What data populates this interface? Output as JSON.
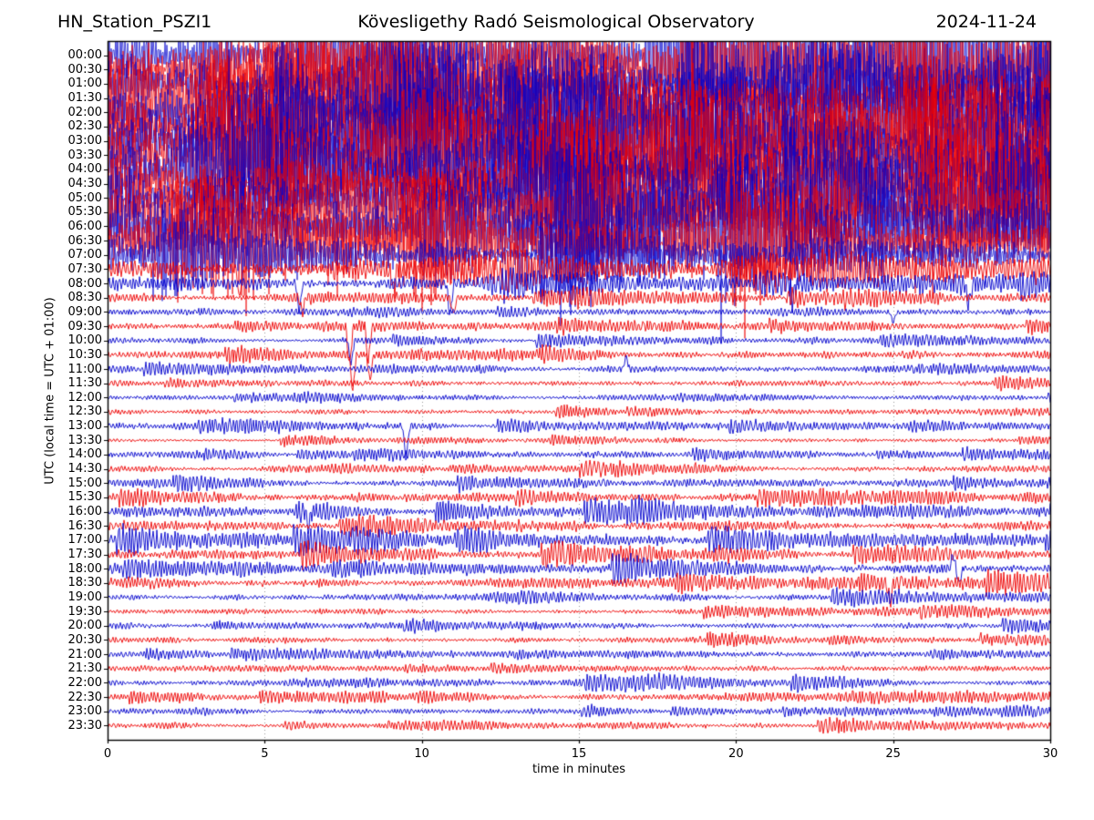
{
  "header": {
    "station": "HN_Station_PSZI1",
    "observatory": "Kövesligethy Radó Seismological Observatory",
    "date": "2024-11-24"
  },
  "chart_data": {
    "type": "line",
    "subtype": "helicorder-drum-plot",
    "x_label": "time in minutes",
    "y_label": "UTC (local time = UTC + 01:00)",
    "x_range": [
      0,
      30
    ],
    "x_ticks": [
      0,
      5,
      10,
      15,
      20,
      25,
      30
    ],
    "grid_minutes": [
      5,
      10,
      15,
      20,
      25
    ],
    "grid_style": "dotted",
    "minutes_per_row": 30,
    "colors": {
      "blue_trace": "#0000cd",
      "red_trace": "#ee0000",
      "grid": "#999999",
      "axis": "#000000",
      "background": "#ffffff"
    },
    "rows": [
      {
        "label": "00:00",
        "color": "blue",
        "amp": 62,
        "act": 0.9
      },
      {
        "label": "00:30",
        "color": "red",
        "amp": 62,
        "act": 0.9
      },
      {
        "label": "01:00",
        "color": "blue",
        "amp": 62,
        "act": 0.9
      },
      {
        "label": "01:30",
        "color": "red",
        "amp": 62,
        "act": 0.9
      },
      {
        "label": "02:00",
        "color": "blue",
        "amp": 62,
        "act": 0.9
      },
      {
        "label": "02:30",
        "color": "red",
        "amp": 62,
        "act": 0.9
      },
      {
        "label": "03:00",
        "color": "blue",
        "amp": 61,
        "act": 0.9
      },
      {
        "label": "03:30",
        "color": "red",
        "amp": 60,
        "act": 0.9
      },
      {
        "label": "04:00",
        "color": "blue",
        "amp": 60,
        "act": 0.9
      },
      {
        "label": "04:30",
        "color": "red",
        "amp": 58,
        "act": 0.9
      },
      {
        "label": "05:00",
        "color": "blue",
        "amp": 55,
        "act": 0.9
      },
      {
        "label": "05:30",
        "color": "red",
        "amp": 52,
        "act": 0.9
      },
      {
        "label": "06:00",
        "color": "blue",
        "amp": 48,
        "act": 0.9
      },
      {
        "label": "06:30",
        "color": "red",
        "amp": 40,
        "act": 0.85
      },
      {
        "label": "07:00",
        "color": "blue",
        "amp": 30,
        "act": 0.8
      },
      {
        "label": "07:30",
        "color": "red",
        "amp": 20,
        "act": 0.75,
        "spikes": [
          [
            4.2,
            -34
          ],
          [
            9.1,
            -28
          ]
        ]
      },
      {
        "label": "08:00",
        "color": "blue",
        "amp": 11,
        "act": 0.7,
        "spikes": [
          [
            6.1,
            -32
          ],
          [
            10.9,
            -38
          ],
          [
            21.8,
            -20
          ],
          [
            27.4,
            -26
          ]
        ]
      },
      {
        "label": "08:30",
        "color": "red",
        "amp": 7,
        "act": 0.6,
        "spikes": [
          [
            6.2,
            -18
          ],
          [
            11.0,
            -20
          ]
        ]
      },
      {
        "label": "09:00",
        "color": "blue",
        "amp": 5,
        "act": 0.5,
        "spikes": [
          [
            25.0,
            -12
          ]
        ]
      },
      {
        "label": "09:30",
        "color": "red",
        "amp": 6,
        "act": 0.5,
        "spikes": [
          [
            7.7,
            -48
          ],
          [
            8.3,
            -40
          ]
        ]
      },
      {
        "label": "10:00",
        "color": "blue",
        "amp": 5,
        "act": 0.5,
        "spikes": [
          [
            7.75,
            -26
          ]
        ]
      },
      {
        "label": "10:30",
        "color": "red",
        "amp": 6,
        "act": 0.5,
        "spikes": [
          [
            7.8,
            -42
          ],
          [
            8.35,
            -30
          ]
        ]
      },
      {
        "label": "11:00",
        "color": "blue",
        "amp": 6,
        "act": 0.55,
        "spikes": [
          [
            16.5,
            14
          ]
        ]
      },
      {
        "label": "11:30",
        "color": "red",
        "amp": 5,
        "act": 0.5
      },
      {
        "label": "12:00",
        "color": "blue",
        "amp": 4,
        "act": 0.45
      },
      {
        "label": "12:30",
        "color": "red",
        "amp": 5,
        "act": 0.5
      },
      {
        "label": "13:00",
        "color": "blue",
        "amp": 6,
        "act": 0.5,
        "spikes": [
          [
            9.5,
            -40
          ]
        ]
      },
      {
        "label": "13:30",
        "color": "red",
        "amp": 4,
        "act": 0.45
      },
      {
        "label": "14:00",
        "color": "blue",
        "amp": 5,
        "act": 0.5
      },
      {
        "label": "14:30",
        "color": "red",
        "amp": 6,
        "act": 0.55
      },
      {
        "label": "15:00",
        "color": "blue",
        "amp": 6,
        "act": 0.55
      },
      {
        "label": "15:30",
        "color": "red",
        "amp": 7,
        "act": 0.7
      },
      {
        "label": "16:00",
        "color": "blue",
        "amp": 8,
        "act": 0.8,
        "spikes": [
          [
            6.4,
            -16
          ]
        ]
      },
      {
        "label": "16:30",
        "color": "red",
        "amp": 8,
        "act": 0.8
      },
      {
        "label": "17:00",
        "color": "blue",
        "amp": 9,
        "act": 0.85
      },
      {
        "label": "17:30",
        "color": "red",
        "amp": 8,
        "act": 0.8
      },
      {
        "label": "18:00",
        "color": "blue",
        "amp": 9,
        "act": 0.85,
        "spikes": [
          [
            26.9,
            16
          ],
          [
            27.1,
            -18
          ]
        ]
      },
      {
        "label": "18:30",
        "color": "red",
        "amp": 8,
        "act": 0.8,
        "spikes": [
          [
            24.9,
            -22
          ]
        ]
      },
      {
        "label": "19:00",
        "color": "blue",
        "amp": 6,
        "act": 0.6
      },
      {
        "label": "19:30",
        "color": "red",
        "amp": 5,
        "act": 0.55
      },
      {
        "label": "20:00",
        "color": "blue",
        "amp": 5,
        "act": 0.55
      },
      {
        "label": "20:30",
        "color": "red",
        "amp": 5,
        "act": 0.55
      },
      {
        "label": "21:00",
        "color": "blue",
        "amp": 5,
        "act": 0.5
      },
      {
        "label": "21:30",
        "color": "red",
        "amp": 4,
        "act": 0.5
      },
      {
        "label": "22:00",
        "color": "blue",
        "amp": 6,
        "act": 0.6
      },
      {
        "label": "22:30",
        "color": "red",
        "amp": 6,
        "act": 0.6
      },
      {
        "label": "23:00",
        "color": "blue",
        "amp": 5,
        "act": 0.55
      },
      {
        "label": "23:30",
        "color": "red",
        "amp": 5,
        "act": 0.55
      }
    ]
  }
}
